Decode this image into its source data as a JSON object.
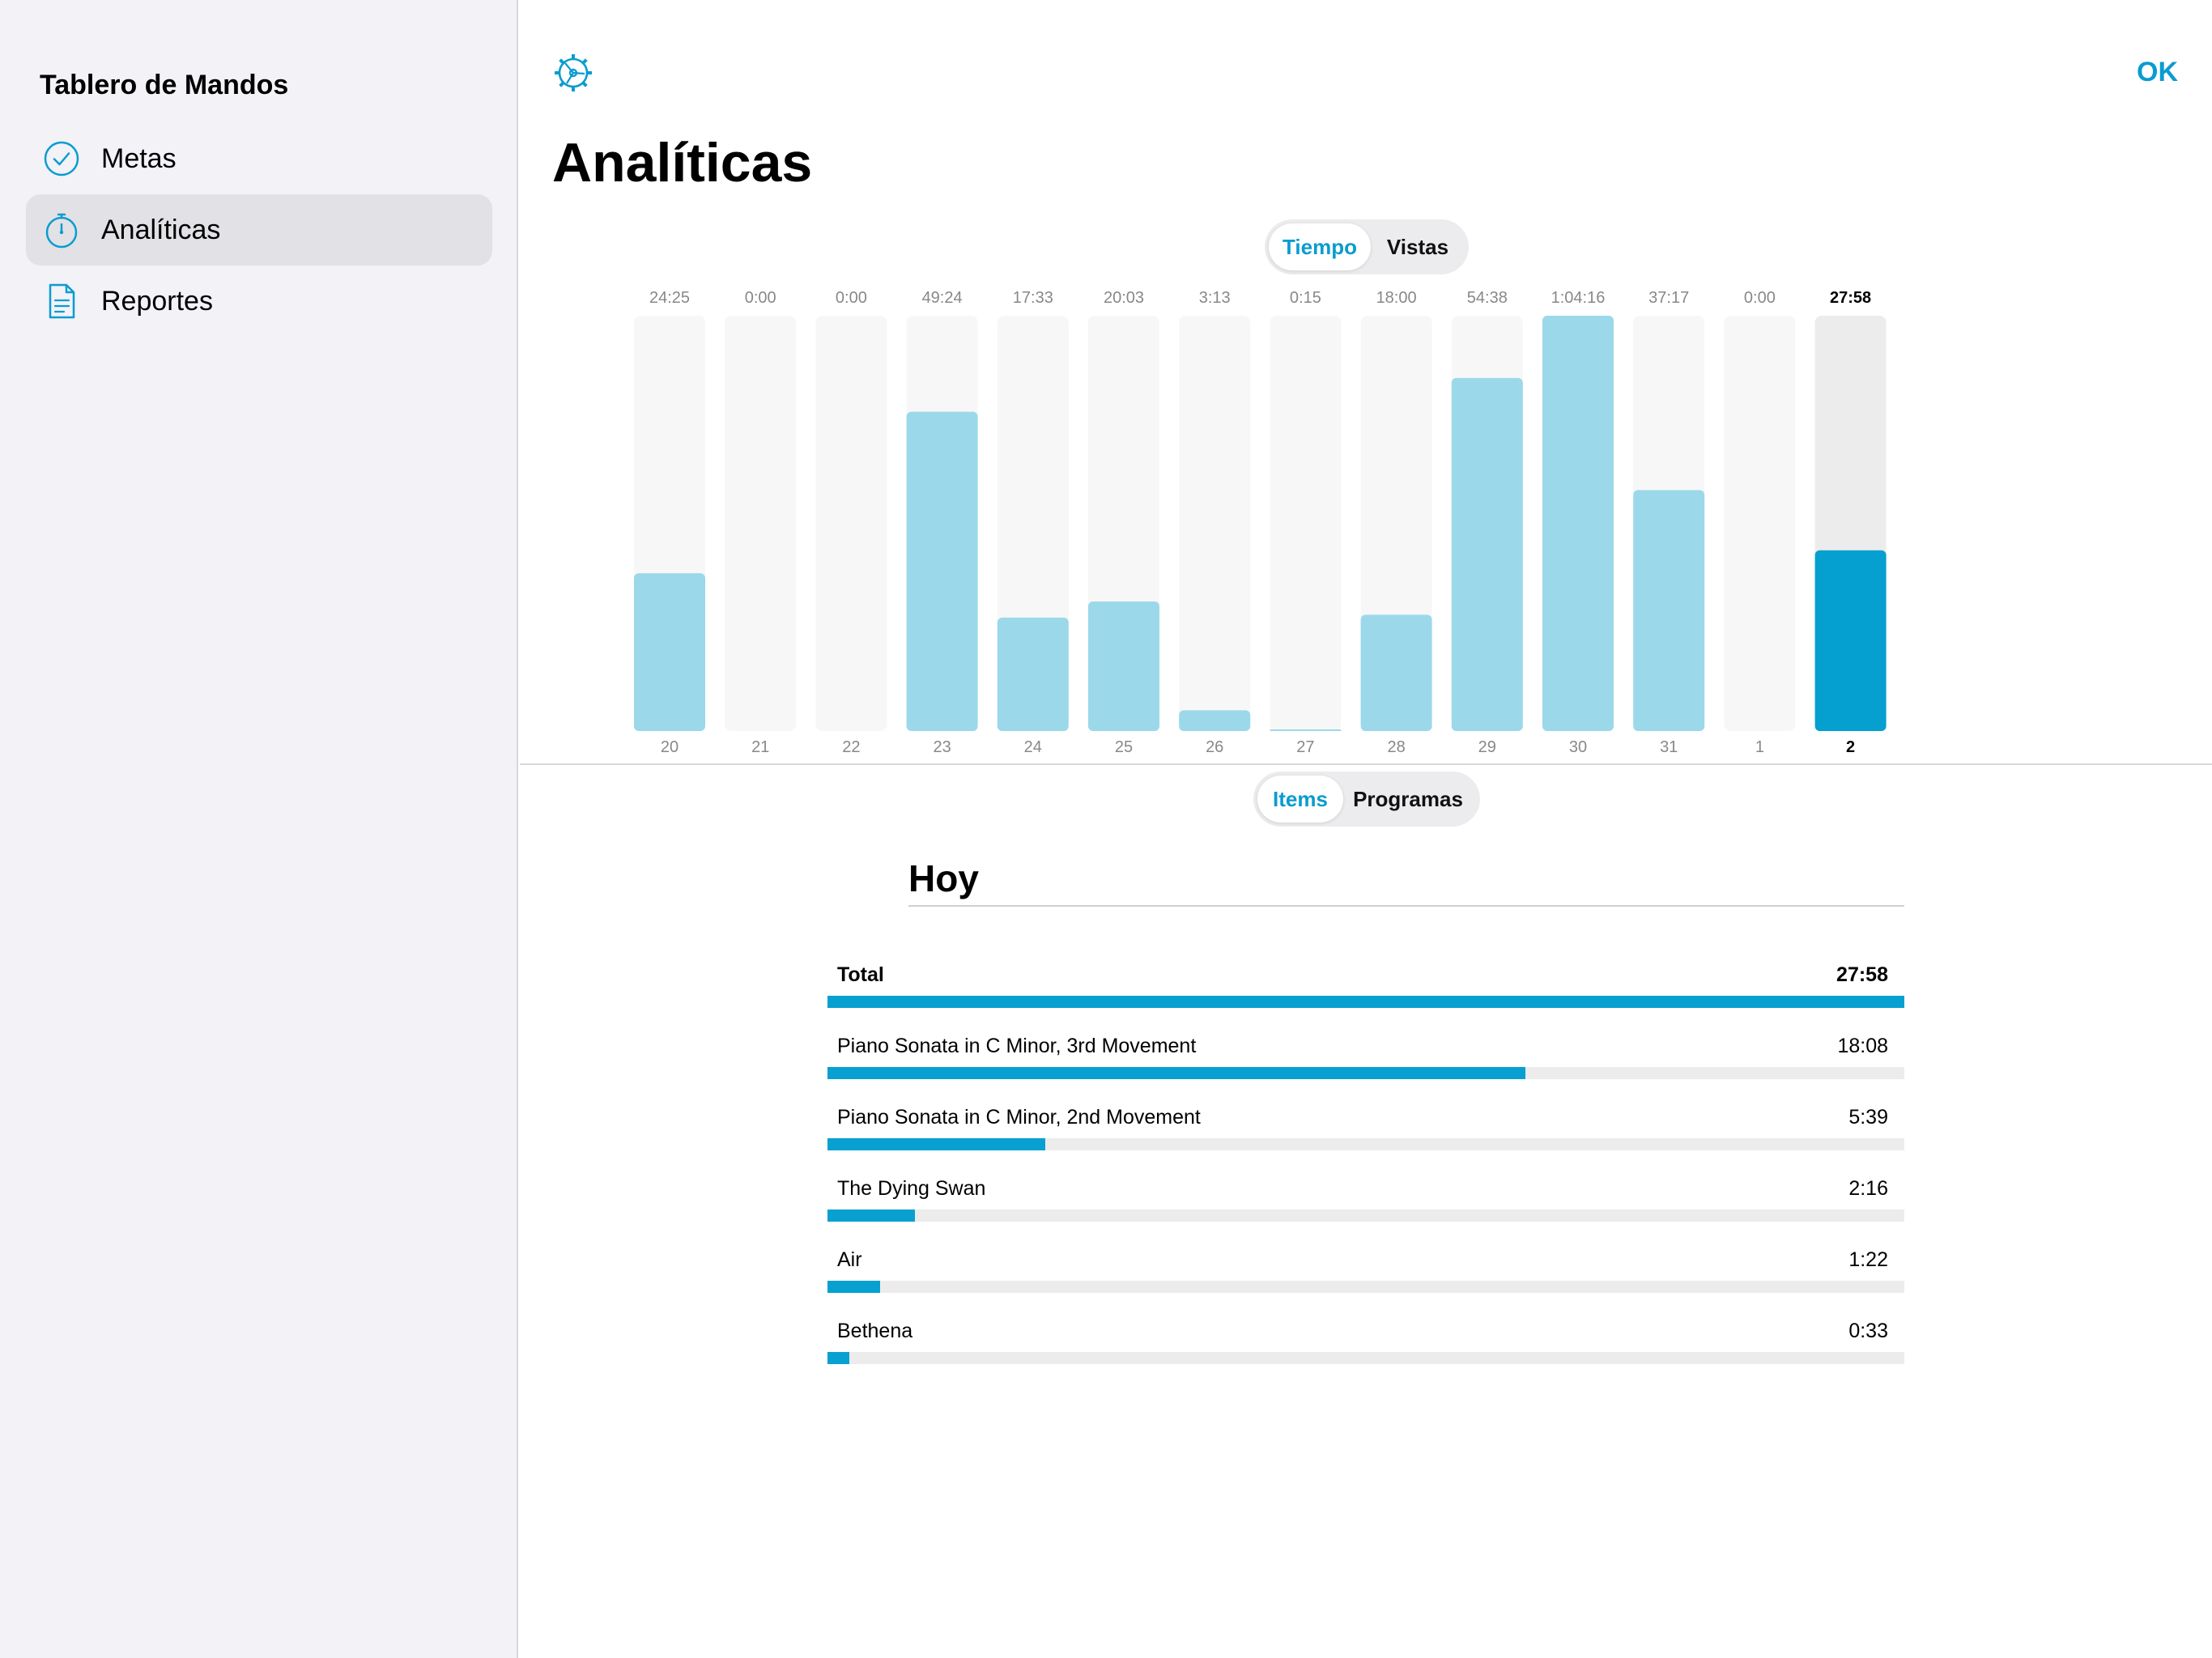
{
  "sidebar": {
    "title": "Tablero de Mandos",
    "items": [
      {
        "label": "Metas",
        "icon": "checkmark-circle-icon",
        "selected": false
      },
      {
        "label": "Analíticas",
        "icon": "stopwatch-icon",
        "selected": true
      },
      {
        "label": "Reportes",
        "icon": "document-icon",
        "selected": false
      }
    ]
  },
  "header": {
    "settings_icon": "gear-icon",
    "ok_label": "OK",
    "title": "Analíticas"
  },
  "metric_toggle": {
    "options": [
      "Tiempo",
      "Vistas"
    ],
    "selected": "Tiempo"
  },
  "breakdown_toggle": {
    "options": [
      "Items",
      "Programas"
    ],
    "selected": "Items"
  },
  "colors": {
    "accent": "#0a9ccf",
    "bar_light": "#9bd8ea",
    "bar_today": "#05a0cf",
    "bar_track": "#f7f7f7",
    "bar_track_today": "#ececec"
  },
  "chart_data": {
    "type": "bar",
    "categories": [
      "20",
      "21",
      "22",
      "23",
      "24",
      "25",
      "26",
      "27",
      "28",
      "29",
      "30",
      "31",
      "1",
      "2"
    ],
    "value_labels": [
      "24:25",
      "0:00",
      "0:00",
      "49:24",
      "17:33",
      "20:03",
      "3:13",
      "0:15",
      "18:00",
      "54:38",
      "1:04:16",
      "37:17",
      "0:00",
      "27:58"
    ],
    "values_seconds": [
      1465,
      0,
      0,
      2964,
      1053,
      1203,
      193,
      15,
      1080,
      3278,
      3856,
      2237,
      0,
      1678
    ],
    "highlighted_category": "2",
    "ylim": [
      0,
      3856
    ]
  },
  "today": {
    "title": "Hoy",
    "total_label": "Total",
    "total_value": "27:58",
    "total_fraction": 1.0,
    "items": [
      {
        "name": "Piano Sonata in C Minor, 3rd Movement",
        "value": "18:08",
        "fraction": 0.648
      },
      {
        "name": "Piano Sonata in C Minor, 2nd Movement",
        "value": "5:39",
        "fraction": 0.202
      },
      {
        "name": "The Dying Swan",
        "value": "2:16",
        "fraction": 0.081
      },
      {
        "name": "Air",
        "value": "1:22",
        "fraction": 0.049
      },
      {
        "name": "Bethena",
        "value": "0:33",
        "fraction": 0.02
      }
    ]
  }
}
